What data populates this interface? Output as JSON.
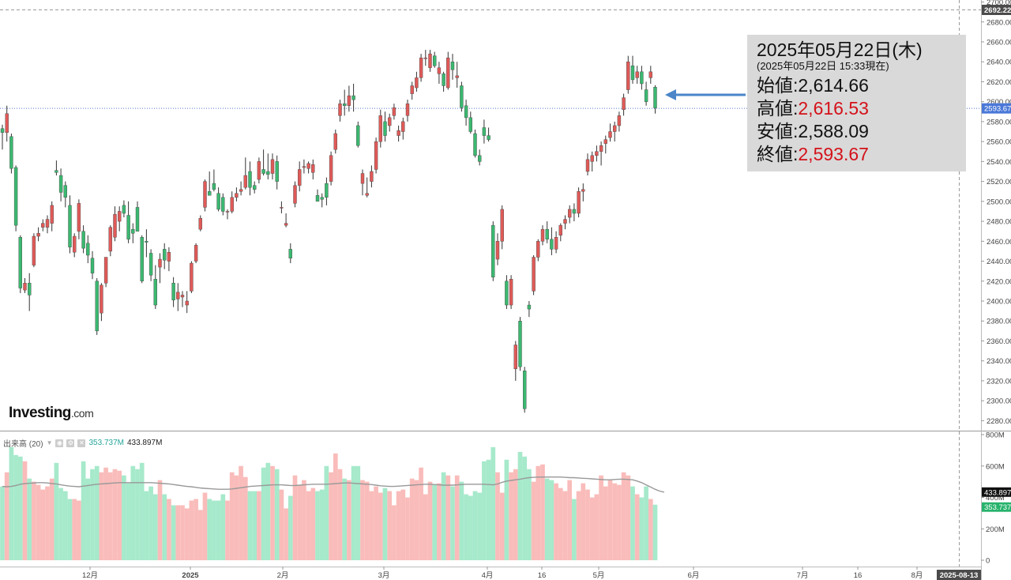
{
  "brand": {
    "name": "Investing",
    "domain": ".com"
  },
  "volume_legend": {
    "name": "出来高 (20)",
    "volume": "353.737M",
    "ma": "433.897M"
  },
  "info_box": {
    "date": "2025年05月22日(木)",
    "as_of": "(2025年05月22日 15:33現在)",
    "rows": [
      {
        "label": "始値",
        "value": "2,614.66",
        "color": "#111111"
      },
      {
        "label": "高値",
        "value": "2,616.53",
        "color": "#d4121a"
      },
      {
        "label": "安値",
        "value": "2,588.09",
        "color": "#111111"
      },
      {
        "label": "終値",
        "value": "2,593.67",
        "color": "#d4121a"
      }
    ]
  },
  "colors": {
    "up": "#df5a58",
    "down": "#3bb870",
    "vol_up": "#f9bcba",
    "vol_down": "#a6e9cb",
    "ma": "#999999",
    "arrow": "#4a86c8",
    "price_line": "#5577cc"
  },
  "chart_data": {
    "type": "candlestick",
    "price_axis": {
      "min": 2270,
      "max": 2702,
      "ticks": [
        "2280.00",
        "2300.00",
        "2320.00",
        "2340.00",
        "2360.00",
        "2380.00",
        "2400.00",
        "2420.00",
        "2440.00",
        "2460.00",
        "2480.00",
        "2500.00",
        "2520.00",
        "2540.00",
        "2560.00",
        "2580.00",
        "2600.00",
        "2620.00",
        "2640.00",
        "2660.00",
        "2680.00",
        "2700.00"
      ]
    },
    "price_labels": {
      "high_marker": "2692.22",
      "last_close": "2593.67"
    },
    "volume_axis": {
      "min": 0,
      "max": 800,
      "ticks": [
        "0",
        "200M",
        "400M",
        "600M",
        "800M"
      ]
    },
    "volume_labels": {
      "ma": "433.897",
      "volume": "353.737"
    },
    "x_axis_labels": [
      "12月",
      "2025",
      "2月",
      "3月",
      "4月",
      "16",
      "5月",
      "6月",
      "7月",
      "16",
      "8月"
    ],
    "cursor_date_label": "2025-08-13",
    "series": [
      {
        "o": 2573,
        "h": 2577,
        "l": 2552,
        "c": 2569,
        "v": 470
      },
      {
        "o": 2569,
        "h": 2596,
        "l": 2560,
        "c": 2588,
        "v": 560
      },
      {
        "o": 2565,
        "h": 2568,
        "l": 2528,
        "c": 2533,
        "v": 720
      },
      {
        "o": 2534,
        "h": 2536,
        "l": 2470,
        "c": 2476,
        "v": 670
      },
      {
        "o": 2464,
        "h": 2466,
        "l": 2408,
        "c": 2413,
        "v": 660
      },
      {
        "o": 2411,
        "h": 2423,
        "l": 2408,
        "c": 2418,
        "v": 630
      },
      {
        "o": 2418,
        "h": 2428,
        "l": 2390,
        "c": 2406,
        "v": 520
      },
      {
        "o": 2436,
        "h": 2468,
        "l": 2434,
        "c": 2465,
        "v": 500
      },
      {
        "o": 2465,
        "h": 2474,
        "l": 2460,
        "c": 2468,
        "v": 480
      },
      {
        "o": 2474,
        "h": 2482,
        "l": 2470,
        "c": 2478,
        "v": 450
      },
      {
        "o": 2474,
        "h": 2486,
        "l": 2468,
        "c": 2482,
        "v": 470
      },
      {
        "o": 2478,
        "h": 2500,
        "l": 2470,
        "c": 2496,
        "v": 520
      },
      {
        "o": 2531,
        "h": 2541,
        "l": 2526,
        "c": 2529,
        "v": 620
      },
      {
        "o": 2526,
        "h": 2533,
        "l": 2500,
        "c": 2509,
        "v": 460
      },
      {
        "o": 2516,
        "h": 2520,
        "l": 2494,
        "c": 2504,
        "v": 440
      },
      {
        "o": 2496,
        "h": 2506,
        "l": 2448,
        "c": 2454,
        "v": 390
      },
      {
        "o": 2449,
        "h": 2468,
        "l": 2444,
        "c": 2465,
        "v": 390
      },
      {
        "o": 2470,
        "h": 2502,
        "l": 2462,
        "c": 2498,
        "v": 380
      },
      {
        "o": 2470,
        "h": 2476,
        "l": 2448,
        "c": 2453,
        "v": 630
      },
      {
        "o": 2458,
        "h": 2466,
        "l": 2438,
        "c": 2446,
        "v": 520
      },
      {
        "o": 2443,
        "h": 2450,
        "l": 2422,
        "c": 2428,
        "v": 580
      },
      {
        "o": 2420,
        "h": 2423,
        "l": 2366,
        "c": 2370,
        "v": 600
      },
      {
        "o": 2388,
        "h": 2418,
        "l": 2380,
        "c": 2416,
        "v": 560
      },
      {
        "o": 2418,
        "h": 2442,
        "l": 2414,
        "c": 2444,
        "v": 590
      },
      {
        "o": 2450,
        "h": 2476,
        "l": 2445,
        "c": 2474,
        "v": 560
      },
      {
        "o": 2464,
        "h": 2495,
        "l": 2460,
        "c": 2487,
        "v": 580
      },
      {
        "o": 2480,
        "h": 2495,
        "l": 2470,
        "c": 2490,
        "v": 570
      },
      {
        "o": 2496,
        "h": 2501,
        "l": 2484,
        "c": 2488,
        "v": 540
      },
      {
        "o": 2486,
        "h": 2500,
        "l": 2458,
        "c": 2462,
        "v": 490
      },
      {
        "o": 2472,
        "h": 2478,
        "l": 2458,
        "c": 2468,
        "v": 600
      },
      {
        "o": 2494,
        "h": 2500,
        "l": 2470,
        "c": 2470,
        "v": 580
      },
      {
        "o": 2464,
        "h": 2466,
        "l": 2418,
        "c": 2420,
        "v": 620
      },
      {
        "o": 2460,
        "h": 2472,
        "l": 2444,
        "c": 2459,
        "v": 440
      },
      {
        "o": 2448,
        "h": 2452,
        "l": 2420,
        "c": 2426,
        "v": 470
      },
      {
        "o": 2422,
        "h": 2436,
        "l": 2392,
        "c": 2396,
        "v": 420
      },
      {
        "o": 2434,
        "h": 2448,
        "l": 2418,
        "c": 2442,
        "v": 510
      },
      {
        "o": 2452,
        "h": 2458,
        "l": 2432,
        "c": 2441,
        "v": 420
      },
      {
        "o": 2440,
        "h": 2454,
        "l": 2430,
        "c": 2449,
        "v": 390
      },
      {
        "o": 2418,
        "h": 2424,
        "l": 2394,
        "c": 2401,
        "v": 350
      },
      {
        "o": 2402,
        "h": 2418,
        "l": 2390,
        "c": 2409,
        "v": 350
      },
      {
        "o": 2404,
        "h": 2410,
        "l": 2394,
        "c": 2406,
        "v": 350
      },
      {
        "o": 2396,
        "h": 2410,
        "l": 2388,
        "c": 2400,
        "v": 330
      },
      {
        "o": 2410,
        "h": 2440,
        "l": 2408,
        "c": 2438,
        "v": 380
      },
      {
        "o": 2440,
        "h": 2458,
        "l": 2438,
        "c": 2456,
        "v": 390
      },
      {
        "o": 2472,
        "h": 2486,
        "l": 2470,
        "c": 2483,
        "v": 320
      },
      {
        "o": 2494,
        "h": 2522,
        "l": 2490,
        "c": 2520,
        "v": 430
      },
      {
        "o": 2510,
        "h": 2530,
        "l": 2506,
        "c": 2506,
        "v": 390
      },
      {
        "o": 2518,
        "h": 2532,
        "l": 2510,
        "c": 2512,
        "v": 380
      },
      {
        "o": 2508,
        "h": 2514,
        "l": 2490,
        "c": 2492,
        "v": 380
      },
      {
        "o": 2504,
        "h": 2508,
        "l": 2486,
        "c": 2490,
        "v": 420
      },
      {
        "o": 2490,
        "h": 2492,
        "l": 2482,
        "c": 2490,
        "v": 380
      },
      {
        "o": 2490,
        "h": 2510,
        "l": 2488,
        "c": 2504,
        "v": 560
      },
      {
        "o": 2504,
        "h": 2514,
        "l": 2500,
        "c": 2508,
        "v": 540
      },
      {
        "o": 2510,
        "h": 2520,
        "l": 2506,
        "c": 2512,
        "v": 600
      },
      {
        "o": 2514,
        "h": 2544,
        "l": 2512,
        "c": 2526,
        "v": 530
      },
      {
        "o": 2530,
        "h": 2540,
        "l": 2506,
        "c": 2514,
        "v": 440
      },
      {
        "o": 2516,
        "h": 2520,
        "l": 2508,
        "c": 2512,
        "v": 440
      },
      {
        "o": 2522,
        "h": 2544,
        "l": 2518,
        "c": 2540,
        "v": 440
      },
      {
        "o": 2532,
        "h": 2552,
        "l": 2526,
        "c": 2528,
        "v": 590
      },
      {
        "o": 2530,
        "h": 2548,
        "l": 2522,
        "c": 2527,
        "v": 620
      },
      {
        "o": 2528,
        "h": 2548,
        "l": 2522,
        "c": 2542,
        "v": 600
      },
      {
        "o": 2540,
        "h": 2546,
        "l": 2512,
        "c": 2520,
        "v": 580
      },
      {
        "o": 2494,
        "h": 2500,
        "l": 2488,
        "c": 2494,
        "v": 450
      },
      {
        "o": 2476,
        "h": 2488,
        "l": 2474,
        "c": 2478,
        "v": 330
      },
      {
        "o": 2452,
        "h": 2458,
        "l": 2438,
        "c": 2443,
        "v": 410
      },
      {
        "o": 2498,
        "h": 2520,
        "l": 2494,
        "c": 2516,
        "v": 540
      },
      {
        "o": 2516,
        "h": 2540,
        "l": 2510,
        "c": 2532,
        "v": 480
      },
      {
        "o": 2534,
        "h": 2542,
        "l": 2528,
        "c": 2535,
        "v": 510
      },
      {
        "o": 2533,
        "h": 2540,
        "l": 2528,
        "c": 2538,
        "v": 440
      },
      {
        "o": 2529,
        "h": 2542,
        "l": 2522,
        "c": 2537,
        "v": 460
      },
      {
        "o": 2506,
        "h": 2512,
        "l": 2500,
        "c": 2500,
        "v": 440
      },
      {
        "o": 2504,
        "h": 2508,
        "l": 2494,
        "c": 2502,
        "v": 450
      },
      {
        "o": 2518,
        "h": 2524,
        "l": 2496,
        "c": 2504,
        "v": 600
      },
      {
        "o": 2520,
        "h": 2550,
        "l": 2516,
        "c": 2546,
        "v": 560
      },
      {
        "o": 2552,
        "h": 2572,
        "l": 2548,
        "c": 2568,
        "v": 680
      },
      {
        "o": 2586,
        "h": 2602,
        "l": 2580,
        "c": 2598,
        "v": 580
      },
      {
        "o": 2598,
        "h": 2612,
        "l": 2586,
        "c": 2596,
        "v": 520
      },
      {
        "o": 2596,
        "h": 2616,
        "l": 2590,
        "c": 2606,
        "v": 510
      },
      {
        "o": 2606,
        "h": 2618,
        "l": 2590,
        "c": 2602,
        "v": 600
      },
      {
        "o": 2576,
        "h": 2580,
        "l": 2554,
        "c": 2556,
        "v": 600
      },
      {
        "o": 2518,
        "h": 2532,
        "l": 2506,
        "c": 2528,
        "v": 510
      },
      {
        "o": 2506,
        "h": 2524,
        "l": 2504,
        "c": 2508,
        "v": 500
      },
      {
        "o": 2520,
        "h": 2536,
        "l": 2514,
        "c": 2530,
        "v": 440
      },
      {
        "o": 2532,
        "h": 2564,
        "l": 2528,
        "c": 2560,
        "v": 470
      },
      {
        "o": 2560,
        "h": 2592,
        "l": 2554,
        "c": 2586,
        "v": 430
      },
      {
        "o": 2580,
        "h": 2590,
        "l": 2560,
        "c": 2566,
        "v": 460
      },
      {
        "o": 2576,
        "h": 2588,
        "l": 2570,
        "c": 2584,
        "v": 440
      },
      {
        "o": 2586,
        "h": 2598,
        "l": 2582,
        "c": 2594,
        "v": 350
      },
      {
        "o": 2566,
        "h": 2576,
        "l": 2560,
        "c": 2571,
        "v": 440
      },
      {
        "o": 2570,
        "h": 2584,
        "l": 2562,
        "c": 2580,
        "v": 450
      },
      {
        "o": 2586,
        "h": 2602,
        "l": 2580,
        "c": 2598,
        "v": 400
      },
      {
        "o": 2608,
        "h": 2620,
        "l": 2602,
        "c": 2616,
        "v": 520
      },
      {
        "o": 2614,
        "h": 2630,
        "l": 2610,
        "c": 2624,
        "v": 510
      },
      {
        "o": 2624,
        "h": 2648,
        "l": 2620,
        "c": 2644,
        "v": 590
      },
      {
        "o": 2644,
        "h": 2652,
        "l": 2636,
        "c": 2644,
        "v": 420
      },
      {
        "o": 2634,
        "h": 2652,
        "l": 2630,
        "c": 2648,
        "v": 500
      },
      {
        "o": 2646,
        "h": 2650,
        "l": 2634,
        "c": 2636,
        "v": 480
      },
      {
        "o": 2628,
        "h": 2640,
        "l": 2618,
        "c": 2634,
        "v": 490
      },
      {
        "o": 2628,
        "h": 2630,
        "l": 2610,
        "c": 2616,
        "v": 560
      },
      {
        "o": 2614,
        "h": 2650,
        "l": 2612,
        "c": 2644,
        "v": 540
      },
      {
        "o": 2640,
        "h": 2648,
        "l": 2622,
        "c": 2632,
        "v": 470
      },
      {
        "o": 2624,
        "h": 2640,
        "l": 2614,
        "c": 2626,
        "v": 540
      },
      {
        "o": 2616,
        "h": 2620,
        "l": 2590,
        "c": 2594,
        "v": 500
      },
      {
        "o": 2596,
        "h": 2602,
        "l": 2576,
        "c": 2584,
        "v": 420
      },
      {
        "o": 2584,
        "h": 2590,
        "l": 2568,
        "c": 2570,
        "v": 410
      },
      {
        "o": 2568,
        "h": 2572,
        "l": 2544,
        "c": 2546,
        "v": 440
      },
      {
        "o": 2546,
        "h": 2552,
        "l": 2536,
        "c": 2540,
        "v": 430
      },
      {
        "o": 2574,
        "h": 2582,
        "l": 2558,
        "c": 2566,
        "v": 630
      },
      {
        "o": 2566,
        "h": 2574,
        "l": 2560,
        "c": 2562,
        "v": 640
      },
      {
        "o": 2476,
        "h": 2480,
        "l": 2420,
        "c": 2424,
        "v": 720
      },
      {
        "o": 2442,
        "h": 2468,
        "l": 2436,
        "c": 2460,
        "v": 560
      },
      {
        "o": 2460,
        "h": 2496,
        "l": 2452,
        "c": 2492,
        "v": 430
      },
      {
        "o": 2420,
        "h": 2426,
        "l": 2392,
        "c": 2396,
        "v": 640
      },
      {
        "o": 2396,
        "h": 2426,
        "l": 2392,
        "c": 2422,
        "v": 560
      },
      {
        "o": 2332,
        "h": 2360,
        "l": 2320,
        "c": 2356,
        "v": 580
      },
      {
        "o": 2380,
        "h": 2384,
        "l": 2330,
        "c": 2334,
        "v": 690
      },
      {
        "o": 2330,
        "h": 2334,
        "l": 2288,
        "c": 2292,
        "v": 660
      },
      {
        "o": 2396,
        "h": 2400,
        "l": 2384,
        "c": 2392,
        "v": 580
      },
      {
        "o": 2410,
        "h": 2446,
        "l": 2406,
        "c": 2444,
        "v": 500
      },
      {
        "o": 2444,
        "h": 2462,
        "l": 2440,
        "c": 2460,
        "v": 600
      },
      {
        "o": 2460,
        "h": 2476,
        "l": 2456,
        "c": 2472,
        "v": 610
      },
      {
        "o": 2472,
        "h": 2480,
        "l": 2458,
        "c": 2462,
        "v": 520
      },
      {
        "o": 2462,
        "h": 2474,
        "l": 2446,
        "c": 2452,
        "v": 510
      },
      {
        "o": 2452,
        "h": 2470,
        "l": 2448,
        "c": 2464,
        "v": 490
      },
      {
        "o": 2466,
        "h": 2478,
        "l": 2460,
        "c": 2476,
        "v": 460
      },
      {
        "o": 2478,
        "h": 2486,
        "l": 2472,
        "c": 2482,
        "v": 440
      },
      {
        "o": 2484,
        "h": 2496,
        "l": 2478,
        "c": 2492,
        "v": 510
      },
      {
        "o": 2492,
        "h": 2498,
        "l": 2480,
        "c": 2488,
        "v": 390
      },
      {
        "o": 2488,
        "h": 2514,
        "l": 2484,
        "c": 2510,
        "v": 440
      },
      {
        "o": 2510,
        "h": 2518,
        "l": 2500,
        "c": 2512,
        "v": 490
      },
      {
        "o": 2530,
        "h": 2548,
        "l": 2526,
        "c": 2542,
        "v": 450
      },
      {
        "o": 2540,
        "h": 2550,
        "l": 2530,
        "c": 2546,
        "v": 400
      },
      {
        "o": 2546,
        "h": 2556,
        "l": 2540,
        "c": 2550,
        "v": 420
      },
      {
        "o": 2550,
        "h": 2560,
        "l": 2536,
        "c": 2556,
        "v": 540
      },
      {
        "o": 2558,
        "h": 2566,
        "l": 2548,
        "c": 2562,
        "v": 470
      },
      {
        "o": 2564,
        "h": 2578,
        "l": 2560,
        "c": 2570,
        "v": 510
      },
      {
        "o": 2570,
        "h": 2580,
        "l": 2560,
        "c": 2576,
        "v": 490
      },
      {
        "o": 2576,
        "h": 2590,
        "l": 2570,
        "c": 2586,
        "v": 480
      },
      {
        "o": 2592,
        "h": 2608,
        "l": 2586,
        "c": 2604,
        "v": 560
      },
      {
        "o": 2612,
        "h": 2646,
        "l": 2608,
        "c": 2640,
        "v": 540
      },
      {
        "o": 2636,
        "h": 2646,
        "l": 2618,
        "c": 2622,
        "v": 470
      },
      {
        "o": 2624,
        "h": 2636,
        "l": 2618,
        "c": 2630,
        "v": 420
      },
      {
        "o": 2630,
        "h": 2636,
        "l": 2612,
        "c": 2618,
        "v": 400
      },
      {
        "o": 2612,
        "h": 2620,
        "l": 2596,
        "c": 2600,
        "v": 470
      },
      {
        "o": 2624,
        "h": 2636,
        "l": 2618,
        "c": 2630,
        "v": 390
      },
      {
        "o": 2614.66,
        "h": 2616.53,
        "l": 2588.09,
        "c": 2593.67,
        "v": 353.737
      }
    ],
    "ma20": [
      470,
      468,
      470,
      476,
      484,
      488,
      490,
      492,
      494,
      494,
      492,
      488,
      486,
      480,
      476,
      472,
      470,
      468,
      472,
      476,
      480,
      484,
      486,
      488,
      490,
      492,
      494,
      494,
      494,
      494,
      494,
      494,
      494,
      494,
      492,
      490,
      488,
      486,
      482,
      478,
      474,
      470,
      468,
      464,
      460,
      458,
      456,
      454,
      452,
      452,
      452,
      454,
      458,
      462,
      466,
      470,
      472,
      474,
      476,
      478,
      480,
      480,
      480,
      478,
      476,
      476,
      478,
      480,
      482,
      484,
      484,
      484,
      484,
      486,
      488,
      490,
      492,
      492,
      490,
      488,
      486,
      484,
      482,
      478,
      474,
      472,
      470,
      470,
      472,
      474,
      476,
      478,
      480,
      482,
      484,
      484,
      482,
      480,
      478,
      478,
      478,
      480,
      482,
      484,
      484,
      484,
      484,
      484,
      482,
      480,
      486,
      496,
      504,
      508,
      512,
      516,
      522,
      526,
      528,
      530,
      530,
      530,
      530,
      530,
      530,
      528,
      526,
      526,
      524,
      522,
      520,
      518,
      516,
      514,
      512,
      512,
      514,
      516,
      516,
      514,
      512,
      504,
      494,
      480,
      466,
      452,
      440,
      433.897
    ]
  }
}
